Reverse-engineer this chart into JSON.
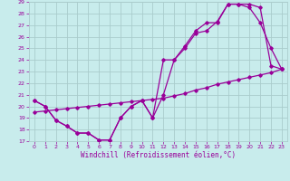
{
  "xlabel": "Windchill (Refroidissement éolien,°C)",
  "bg_color": "#c8ecec",
  "line_color": "#990099",
  "grid_color": "#aacccc",
  "xlim": [
    -0.5,
    23.5
  ],
  "ylim": [
    17,
    29
  ],
  "xticks": [
    0,
    1,
    2,
    3,
    4,
    5,
    6,
    7,
    8,
    9,
    10,
    11,
    12,
    13,
    14,
    15,
    16,
    17,
    18,
    19,
    20,
    21,
    22,
    23
  ],
  "yticks": [
    17,
    18,
    19,
    20,
    21,
    22,
    23,
    24,
    25,
    26,
    27,
    28,
    29
  ],
  "line1_x": [
    0,
    1,
    2,
    3,
    4,
    5,
    6,
    7,
    8,
    9,
    10,
    11,
    12,
    13,
    14,
    15,
    16,
    17,
    18,
    19,
    20,
    21,
    22,
    23
  ],
  "line1_y": [
    20.5,
    20.0,
    18.8,
    18.3,
    17.7,
    17.7,
    17.1,
    17.1,
    19.0,
    20.0,
    20.5,
    19.0,
    21.0,
    24.0,
    25.2,
    26.5,
    27.2,
    27.2,
    28.8,
    28.8,
    28.5,
    27.2,
    25.0,
    23.2
  ],
  "line2_x": [
    0,
    1,
    2,
    3,
    4,
    5,
    6,
    7,
    8,
    9,
    10,
    11,
    12,
    13,
    14,
    15,
    16,
    17,
    18,
    19,
    20,
    21,
    22,
    23
  ],
  "line2_y": [
    20.5,
    20.0,
    18.8,
    18.3,
    17.7,
    17.7,
    17.1,
    17.1,
    19.0,
    20.0,
    20.5,
    19.0,
    24.0,
    24.0,
    25.0,
    26.3,
    26.5,
    27.3,
    28.8,
    28.8,
    28.8,
    28.5,
    23.5,
    23.2
  ],
  "line3_x": [
    0,
    1,
    2,
    3,
    4,
    5,
    6,
    7,
    8,
    9,
    10,
    11,
    12,
    13,
    14,
    15,
    16,
    17,
    18,
    19,
    20,
    21,
    22,
    23
  ],
  "line3_y": [
    19.5,
    19.6,
    19.7,
    19.8,
    19.9,
    20.0,
    20.1,
    20.2,
    20.3,
    20.4,
    20.5,
    20.6,
    20.7,
    20.9,
    21.1,
    21.4,
    21.6,
    21.9,
    22.1,
    22.3,
    22.5,
    22.7,
    22.9,
    23.2
  ]
}
